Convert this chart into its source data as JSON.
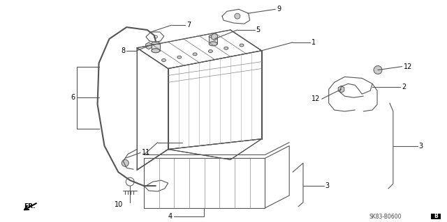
{
  "bg_color": "#ffffff",
  "line_color": "#555555",
  "diagram_code_text": "SK83-B0600",
  "fr_text": "FR."
}
